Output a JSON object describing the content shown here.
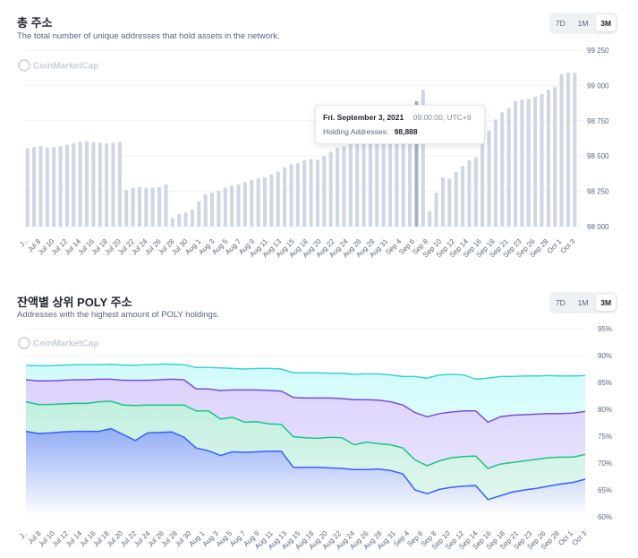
{
  "chart1": {
    "title": "총 주소",
    "subtitle": "The total number of unique addresses that hold assets in the network.",
    "tabs": [
      "7D",
      "1M",
      "3M"
    ],
    "active_tab": "3M",
    "watermark": "CoinMarketCap",
    "tooltip": {
      "date": "Fri. September 3, 2021",
      "time": "09:00:00, UTC+9",
      "label": "Holding Addresses:",
      "value": "98,888"
    }
  },
  "chart2": {
    "title": "잔액별 상위 POLY 주소",
    "subtitle": "Addresses with the highest amount of POLY holdings.",
    "tabs": [
      "7D",
      "1M",
      "3M"
    ],
    "active_tab": "3M",
    "watermark": "CoinMarketCap"
  },
  "colors": {
    "bar": "#cfd6e4",
    "bar_highlight": "#a6b0c3",
    "cyan": "#3ad0db",
    "purple": "#7b4fd6",
    "green": "#16c784",
    "blue": "#3861fb"
  },
  "chart_data": [
    {
      "type": "bar",
      "title": "총 주소",
      "ylim": [
        98000,
        99250
      ],
      "yticks": [
        "98 000",
        "98 250",
        "98 500",
        "98 750",
        "99 000",
        "99 250"
      ],
      "ytick_values": [
        98000,
        98250,
        98500,
        98750,
        99000,
        99250
      ],
      "xtick_labels": [
        "J..",
        "Jul 8",
        "Jul 10",
        "Jul 12",
        "Jul 14",
        "Jul 16",
        "Jul 18",
        "Jul 20",
        "Jul 22",
        "Jul 24",
        "Jul 26",
        "Jul 28",
        "Jul 30",
        "Aug 1",
        "Aug 3",
        "Aug 5",
        "Aug 7",
        "Aug 9",
        "Aug 11",
        "Aug 13",
        "Aug 15",
        "Aug 18",
        "Aug 20",
        "Aug 22",
        "Aug 24",
        "Aug 26",
        "Aug 28",
        "Aug 31",
        "Sep 4",
        "Sep 6",
        "Sep 8",
        "Sep 10",
        "Sep 12",
        "Sep 14",
        "Sep 16",
        "Sep 18",
        "Sep 21",
        "Sep 23",
        "Sep 26",
        "Sep 28",
        "Oct 1",
        "Oct 3"
      ],
      "values": [
        98555,
        98565,
        98570,
        98560,
        98565,
        98570,
        98580,
        98590,
        98600,
        98605,
        98600,
        98595,
        98590,
        98595,
        98600,
        98260,
        98275,
        98280,
        98275,
        98275,
        98280,
        98300,
        98060,
        98090,
        98100,
        98120,
        98180,
        98230,
        98240,
        98255,
        98275,
        98290,
        98300,
        98315,
        98330,
        98340,
        98350,
        98370,
        98390,
        98420,
        98440,
        98450,
        98470,
        98480,
        98475,
        98500,
        98530,
        98560,
        98570,
        98600,
        98620,
        98640,
        98660,
        98690,
        98710,
        98740,
        98770,
        98790,
        98810,
        98888,
        98970,
        98110,
        98240,
        98350,
        98340,
        98390,
        98430,
        98470,
        98490,
        98600,
        98680,
        98760,
        98810,
        98840,
        98890,
        98900,
        98905,
        98920,
        98940,
        98970,
        98990,
        99080,
        99090,
        99090
      ],
      "highlight_index": 59
    },
    {
      "type": "area",
      "title": "잔액별 상위 POLY 주소",
      "ylim": [
        60,
        95
      ],
      "yticks": [
        "95%",
        "90%",
        "85%",
        "80%",
        "75%",
        "70%",
        "65%",
        "60%"
      ],
      "ytick_values": [
        95,
        90,
        85,
        80,
        75,
        70,
        65,
        60
      ],
      "xtick_labels": [
        "J..",
        "Jul 8",
        "Jul 10",
        "Jul 12",
        "Jul 14",
        "Jul 16",
        "Jul 18",
        "Jul 20",
        "Jul 22",
        "Jul 24",
        "Jul 26",
        "Jul 28",
        "Jul 30",
        "Aug 1",
        "Aug 3",
        "Aug 5",
        "Aug 7",
        "Aug 9",
        "Aug 11",
        "Aug 13",
        "Aug 15",
        "Aug 18",
        "Aug 20",
        "Aug 22",
        "Aug 24",
        "Aug 26",
        "Aug 28",
        "Aug 31",
        "Sep 4",
        "Sep 6",
        "Sep 8",
        "Sep 10",
        "Sep 12",
        "Sep 14",
        "Sep 16",
        "Sep 18",
        "Sep 21",
        "Sep 23",
        "Sep 26",
        "Sep 28",
        "Oct 1",
        "Oct 3"
      ],
      "series": [
        {
          "color": "#3ad0db",
          "values": [
            88.2,
            88.1,
            88.1,
            88.2,
            88.3,
            88.3,
            88.3,
            88.4,
            88.2,
            88.2,
            88.3,
            88.4,
            88.4,
            88.3,
            87.8,
            87.8,
            87.7,
            87.6,
            87.5,
            87.6,
            87.6,
            87.5,
            86.8,
            86.8,
            86.8,
            86.7,
            86.7,
            86.5,
            86.6,
            86.6,
            86.4,
            86.1,
            86.1,
            85.8,
            86.4,
            86.5,
            86.4,
            85.6,
            85.8,
            86.1,
            86.1,
            86.2,
            86.2,
            86.3,
            86.2,
            86.2,
            86.3
          ]
        },
        {
          "color": "#7b4fd6",
          "values": [
            85.5,
            85.3,
            85.3,
            85.4,
            85.5,
            85.5,
            85.6,
            85.6,
            85.4,
            85.4,
            85.4,
            85.5,
            85.6,
            85.5,
            83.8,
            83.8,
            83.5,
            83.6,
            83.6,
            83.6,
            83.5,
            83.4,
            82.2,
            82.1,
            82.1,
            82.1,
            82.0,
            81.8,
            81.8,
            81.7,
            81.4,
            80.8,
            79.4,
            78.6,
            79.2,
            79.5,
            79.7,
            79.7,
            77.6,
            78.6,
            78.9,
            79.0,
            79.1,
            79.2,
            79.2,
            79.3,
            79.6
          ]
        },
        {
          "color": "#16c784",
          "values": [
            81.4,
            80.9,
            80.9,
            81.0,
            81.1,
            81.1,
            81.4,
            81.5,
            80.8,
            80.7,
            80.8,
            80.8,
            80.8,
            80.8,
            79.7,
            79.7,
            78.2,
            78.5,
            77.6,
            77.7,
            77.3,
            77.2,
            74.9,
            74.7,
            74.6,
            74.8,
            74.7,
            73.4,
            73.9,
            73.6,
            73.4,
            72.8,
            70.6,
            69.5,
            70.4,
            71.0,
            71.2,
            71.3,
            69.0,
            69.8,
            70.1,
            70.4,
            70.7,
            71.0,
            71.1,
            71.1,
            71.6
          ]
        },
        {
          "color": "#3861fb",
          "values": [
            75.9,
            75.5,
            75.6,
            75.8,
            75.9,
            75.9,
            75.9,
            76.4,
            75.3,
            74.2,
            75.6,
            75.7,
            75.8,
            74.8,
            72.8,
            72.3,
            71.4,
            72.1,
            72.0,
            72.1,
            72.2,
            72.2,
            69.2,
            69.2,
            69.2,
            69.1,
            69.0,
            68.8,
            68.8,
            68.9,
            68.6,
            68.0,
            65.0,
            64.3,
            65.1,
            65.5,
            65.7,
            65.8,
            63.2,
            63.9,
            64.6,
            65.0,
            65.3,
            65.7,
            66.1,
            66.4,
            67.0
          ]
        }
      ]
    }
  ]
}
